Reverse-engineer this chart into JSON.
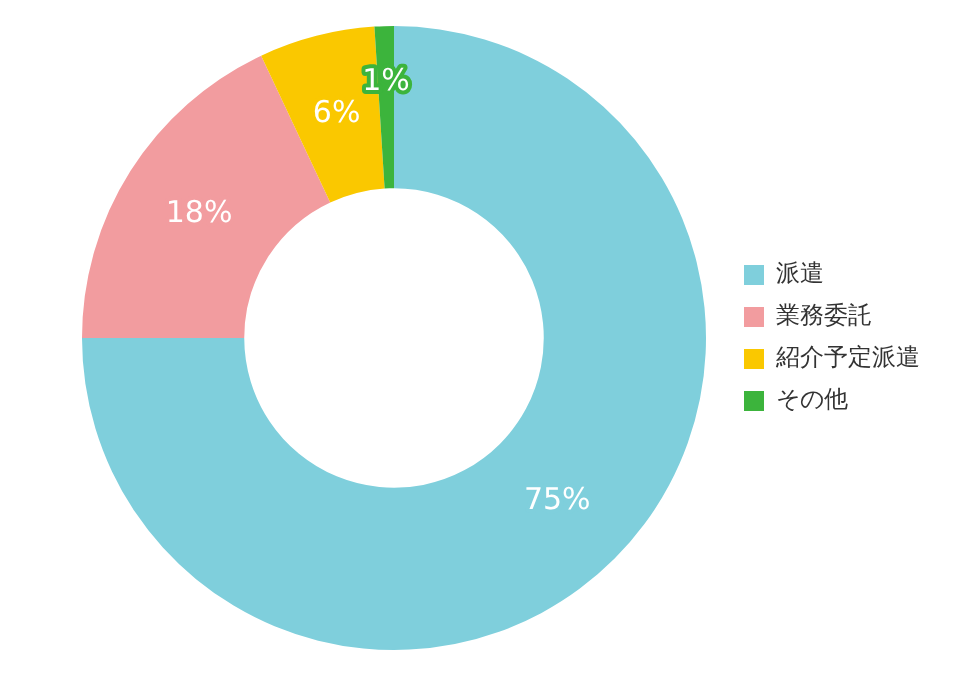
{
  "chart_data": {
    "type": "donut",
    "categories": [
      "派遣",
      "業務委託",
      "紹介予定派遣",
      "その他"
    ],
    "values": [
      75,
      18,
      6,
      1
    ],
    "colors": [
      "#7fcfdc",
      "#f29c9f",
      "#fac800",
      "#3cb43c"
    ],
    "value_labels": [
      "75%",
      "18%",
      "6%",
      "1%"
    ],
    "legend": "right"
  }
}
